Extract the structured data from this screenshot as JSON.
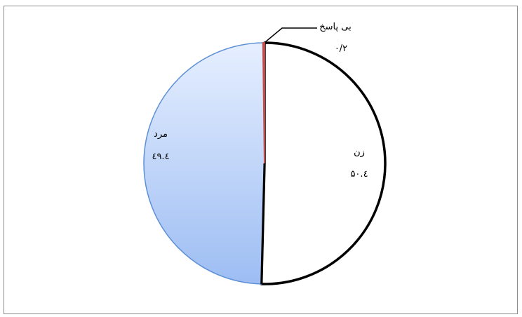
{
  "chart_data": {
    "type": "pie",
    "slices": [
      {
        "label": "زن",
        "value_label": "۵۰.٤",
        "value": 50.4,
        "fill": "#ffffff",
        "stroke": "#000000"
      },
      {
        "label": "مرد",
        "value_label": "٤۹.٤",
        "value": 49.4,
        "fill_top": "#e6efff",
        "fill_bottom": "#9dbdf3",
        "stroke": "#5b8fd6"
      },
      {
        "label": "بی پاسخ",
        "value_label": "۰/۲",
        "value": 0.2,
        "fill": "#c0504d",
        "stroke": "#c0504d"
      }
    ],
    "start_angle": "12 o'clock",
    "direction": "clockwise"
  }
}
